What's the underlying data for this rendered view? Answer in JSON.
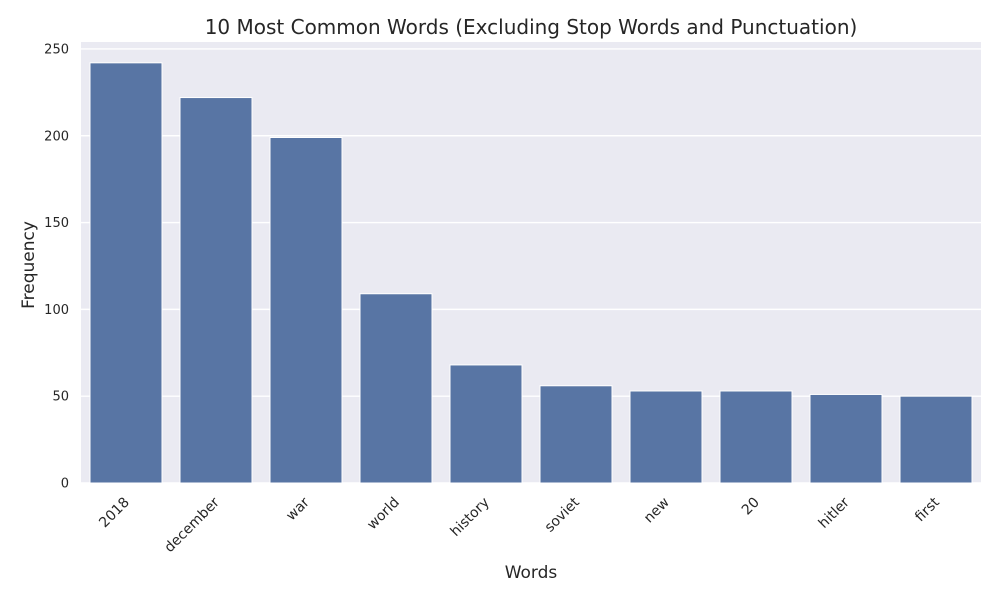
{
  "chart_data": {
    "type": "bar",
    "title": "10 Most Common Words (Excluding Stop Words and Punctuation)",
    "xlabel": "Words",
    "ylabel": "Frequency",
    "categories": [
      "2018",
      "december",
      "war",
      "world",
      "history",
      "soviet",
      "new",
      "20",
      "hitler",
      "first"
    ],
    "values": [
      242,
      222,
      199,
      109,
      68,
      56,
      53,
      53,
      51,
      50
    ],
    "ylim": [
      0,
      254
    ],
    "yticks": [
      0,
      50,
      100,
      150,
      200,
      250
    ],
    "grid": true,
    "legend": "none",
    "colors": {
      "bar": "#5875a4",
      "plot_background": "#eaeaf2",
      "grid": "#ffffff",
      "text": "#262626"
    }
  }
}
